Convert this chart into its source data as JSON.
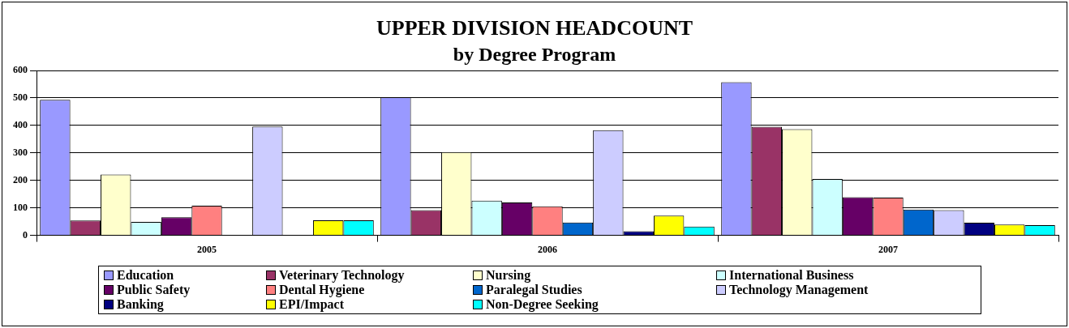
{
  "chart_data": {
    "type": "bar",
    "title": "UPPER DIVISION HEADCOUNT",
    "subtitle": "by Degree Program",
    "categories": [
      "2005",
      "2006",
      "2007"
    ],
    "series": [
      {
        "name": "Education",
        "color": "#9999ff",
        "values": [
          493,
          503,
          557
        ]
      },
      {
        "name": "Veterinary Technology",
        "color": "#993366",
        "values": [
          54,
          92,
          395
        ]
      },
      {
        "name": "Nursing",
        "color": "#ffffcc",
        "values": [
          221,
          303,
          386
        ]
      },
      {
        "name": "International Business",
        "color": "#ccffff",
        "values": [
          49,
          126,
          205
        ]
      },
      {
        "name": "Public Safety",
        "color": "#660066",
        "values": [
          66,
          120,
          139
        ]
      },
      {
        "name": "Dental Hygiene",
        "color": "#ff8080",
        "values": [
          108,
          106,
          137
        ]
      },
      {
        "name": "Paralegal Studies",
        "color": "#0066cc",
        "values": [
          null,
          47,
          94
        ]
      },
      {
        "name": "Technology Management",
        "color": "#ccccff",
        "values": [
          396,
          383,
          92
        ]
      },
      {
        "name": "Banking",
        "color": "#000080",
        "values": [
          null,
          15,
          46
        ]
      },
      {
        "name": "EPI/Impact",
        "color": "#ffff00",
        "values": [
          55,
          72,
          39
        ]
      },
      {
        "name": "Non-Degree Seeking",
        "color": "#00ffff",
        "values": [
          55,
          32,
          37
        ]
      }
    ],
    "ylim": [
      0,
      600
    ],
    "yticks": [
      0,
      100,
      200,
      300,
      400,
      500,
      600
    ],
    "grid": "y",
    "legend": "bottom"
  }
}
